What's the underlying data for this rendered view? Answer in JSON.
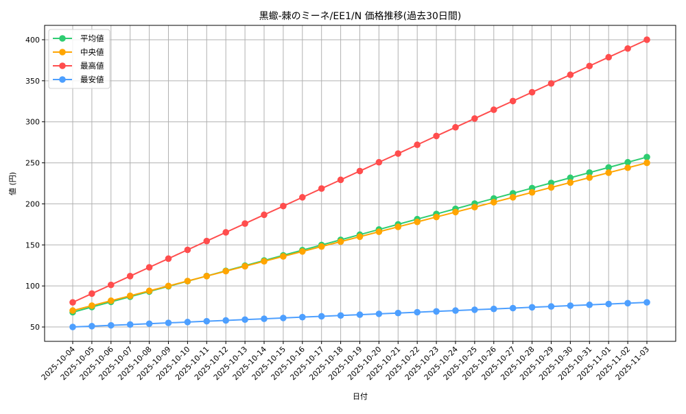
{
  "chart_data": {
    "type": "line",
    "title": "黒蠍-棘のミーネ/EE1/N 価格推移(過去30日間)",
    "xlabel": "日付",
    "ylabel": "値 (円)",
    "ylim": [
      32.5,
      417.5
    ],
    "yticks": [
      50,
      100,
      150,
      200,
      250,
      300,
      350,
      400
    ],
    "grid": true,
    "legend_position": "upper left",
    "categories": [
      "2025-10-04",
      "2025-10-05",
      "2025-10-06",
      "2025-10-07",
      "2025-10-08",
      "2025-10-09",
      "2025-10-10",
      "2025-10-11",
      "2025-10-12",
      "2025-10-13",
      "2025-10-14",
      "2025-10-15",
      "2025-10-16",
      "2025-10-17",
      "2025-10-18",
      "2025-10-19",
      "2025-10-20",
      "2025-10-21",
      "2025-10-22",
      "2025-10-23",
      "2025-10-24",
      "2025-10-25",
      "2025-10-26",
      "2025-10-27",
      "2025-10-28",
      "2025-10-29",
      "2025-10-30",
      "2025-10-31",
      "2025-11-01",
      "2025-11-02",
      "2025-11-03"
    ],
    "series": [
      {
        "name": "平均値",
        "color": "#2ecc71",
        "values": [
          68,
          74.3,
          80.6,
          86.9,
          93.2,
          99.5,
          105.8,
          112.1,
          118.4,
          124.7,
          131,
          137.3,
          143.6,
          149.9,
          156.2,
          162.5,
          168.8,
          175.1,
          181.4,
          187.7,
          194,
          200.3,
          206.6,
          212.9,
          219.2,
          225.5,
          231.8,
          238.1,
          244.4,
          250.7,
          257
        ]
      },
      {
        "name": "中央値",
        "color": "#ffa500",
        "values": [
          70,
          76,
          82,
          88,
          94,
          100,
          106,
          112,
          118,
          124,
          130,
          136,
          142,
          148,
          154,
          160,
          166,
          172,
          178,
          184,
          190,
          196,
          202,
          208,
          214,
          220,
          226,
          232,
          238,
          244,
          250
        ]
      },
      {
        "name": "最高値",
        "color": "#ff4d4d",
        "values": [
          80,
          90.7,
          101.3,
          112,
          122.7,
          133.3,
          144,
          154.7,
          165.3,
          176,
          186.7,
          197.3,
          208,
          218.7,
          229.3,
          240,
          250.7,
          261.3,
          272,
          282.7,
          293.3,
          304,
          314.7,
          325.3,
          336,
          346.7,
          357.3,
          368,
          378.7,
          389.3,
          400
        ]
      },
      {
        "name": "最安値",
        "color": "#4d9fff",
        "values": [
          50,
          51,
          52,
          53,
          54,
          55,
          56,
          57,
          58,
          59,
          60,
          61,
          62,
          63,
          64,
          65,
          66,
          67,
          68,
          69,
          70,
          71,
          72,
          73,
          74,
          75,
          76,
          77,
          78,
          79,
          80
        ]
      }
    ]
  }
}
